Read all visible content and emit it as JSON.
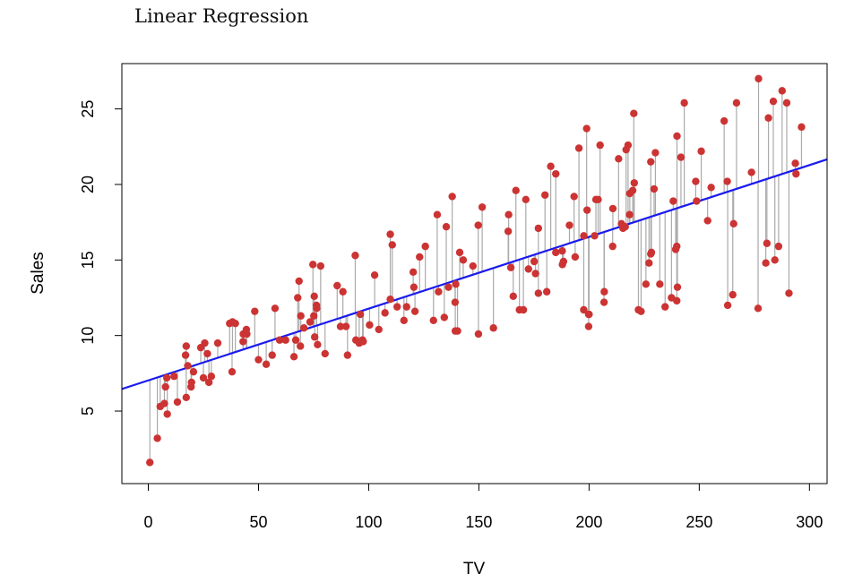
{
  "page": {
    "title": "Linear Regression"
  },
  "chart_data": {
    "type": "scatter",
    "title": "Linear Regression",
    "xlabel": "TV",
    "ylabel": "Sales",
    "xlim": [
      -12,
      308
    ],
    "ylim": [
      0.2,
      28.0
    ],
    "x_ticks": [
      0,
      50,
      100,
      150,
      200,
      250,
      300
    ],
    "y_ticks": [
      5,
      10,
      15,
      20,
      25
    ],
    "grid": false,
    "legend": "none",
    "colors": {
      "points": "#cc3333",
      "fit_line": "#1a1aee",
      "residuals": "#aaaaaa",
      "axes": "#000000"
    },
    "regression_line": {
      "intercept": 7.03,
      "slope": 0.0475
    },
    "points": [
      [
        0.7,
        1.6
      ],
      [
        4.1,
        3.2
      ],
      [
        5.4,
        5.3
      ],
      [
        7.3,
        5.5
      ],
      [
        8.6,
        4.8
      ],
      [
        7.8,
        6.6
      ],
      [
        8.4,
        7.2
      ],
      [
        11.7,
        7.3
      ],
      [
        13.2,
        5.6
      ],
      [
        17.2,
        5.9
      ],
      [
        17.9,
        8.0
      ],
      [
        19.4,
        6.6
      ],
      [
        19.6,
        6.9
      ],
      [
        16.9,
        8.7
      ],
      [
        17.2,
        9.3
      ],
      [
        20.5,
        7.6
      ],
      [
        23.8,
        9.2
      ],
      [
        25.0,
        7.2
      ],
      [
        25.6,
        9.5
      ],
      [
        26.8,
        8.8
      ],
      [
        27.5,
        6.9
      ],
      [
        28.6,
        7.3
      ],
      [
        31.5,
        9.5
      ],
      [
        36.9,
        10.8
      ],
      [
        38.0,
        7.6
      ],
      [
        38.2,
        10.9
      ],
      [
        39.5,
        10.8
      ],
      [
        43.0,
        9.6
      ],
      [
        43.1,
        10.1
      ],
      [
        44.5,
        10.4
      ],
      [
        44.7,
        10.1
      ],
      [
        48.3,
        11.6
      ],
      [
        50.0,
        8.4
      ],
      [
        53.5,
        8.1
      ],
      [
        56.2,
        8.7
      ],
      [
        57.5,
        11.8
      ],
      [
        59.6,
        9.7
      ],
      [
        62.3,
        9.7
      ],
      [
        66.1,
        8.6
      ],
      [
        66.9,
        9.7
      ],
      [
        67.8,
        12.5
      ],
      [
        68.4,
        13.6
      ],
      [
        69.0,
        9.3
      ],
      [
        69.2,
        11.3
      ],
      [
        70.6,
        10.5
      ],
      [
        73.4,
        10.9
      ],
      [
        74.7,
        14.7
      ],
      [
        75.3,
        12.6
      ],
      [
        75.1,
        11.3
      ],
      [
        75.5,
        9.9
      ],
      [
        76.3,
        12.0
      ],
      [
        76.4,
        11.8
      ],
      [
        76.8,
        9.4
      ],
      [
        78.2,
        14.6
      ],
      [
        80.2,
        8.8
      ],
      [
        85.7,
        13.3
      ],
      [
        87.2,
        10.6
      ],
      [
        88.3,
        12.9
      ],
      [
        89.7,
        10.6
      ],
      [
        90.4,
        8.7
      ],
      [
        93.9,
        15.3
      ],
      [
        94.2,
        9.7
      ],
      [
        95.7,
        9.5
      ],
      [
        96.2,
        11.4
      ],
      [
        97.2,
        9.7
      ],
      [
        97.5,
        9.6
      ],
      [
        100.4,
        10.7
      ],
      [
        102.7,
        14.0
      ],
      [
        104.6,
        10.4
      ],
      [
        107.4,
        11.5
      ],
      [
        109.8,
        12.4
      ],
      [
        110.7,
        16.0
      ],
      [
        109.8,
        16.7
      ],
      [
        112.9,
        11.9
      ],
      [
        116.0,
        11.0
      ],
      [
        117.2,
        11.9
      ],
      [
        120.2,
        14.2
      ],
      [
        120.5,
        13.2
      ],
      [
        121.0,
        11.6
      ],
      [
        123.1,
        15.2
      ],
      [
        125.7,
        15.9
      ],
      [
        129.4,
        11.0
      ],
      [
        131.1,
        18.0
      ],
      [
        131.7,
        12.9
      ],
      [
        134.3,
        11.2
      ],
      [
        135.2,
        17.2
      ],
      [
        136.2,
        13.2
      ],
      [
        137.9,
        19.2
      ],
      [
        139.2,
        12.2
      ],
      [
        139.3,
        10.3
      ],
      [
        139.5,
        13.4
      ],
      [
        140.3,
        10.3
      ],
      [
        141.3,
        15.5
      ],
      [
        142.9,
        15.0
      ],
      [
        147.3,
        14.6
      ],
      [
        149.7,
        17.3
      ],
      [
        149.8,
        10.1
      ],
      [
        151.5,
        18.5
      ],
      [
        156.6,
        10.5
      ],
      [
        163.3,
        16.9
      ],
      [
        163.5,
        18.0
      ],
      [
        164.5,
        14.5
      ],
      [
        165.6,
        12.6
      ],
      [
        166.8,
        19.6
      ],
      [
        168.4,
        11.7
      ],
      [
        170.2,
        11.7
      ],
      [
        171.3,
        19.0
      ],
      [
        172.5,
        14.4
      ],
      [
        175.1,
        14.9
      ],
      [
        175.7,
        14.1
      ],
      [
        177.0,
        17.1
      ],
      [
        177.0,
        12.8
      ],
      [
        180.8,
        12.9
      ],
      [
        182.6,
        21.2
      ],
      [
        184.9,
        20.7
      ],
      [
        184.9,
        15.5
      ],
      [
        187.8,
        15.6
      ],
      [
        187.9,
        14.7
      ],
      [
        188.4,
        14.9
      ],
      [
        191.1,
        17.3
      ],
      [
        193.2,
        19.2
      ],
      [
        193.7,
        15.2
      ],
      [
        195.4,
        22.4
      ],
      [
        197.6,
        16.6
      ],
      [
        197.6,
        11.7
      ],
      [
        198.9,
        23.7
      ],
      [
        199.1,
        18.3
      ],
      [
        199.8,
        10.6
      ],
      [
        199.8,
        11.4
      ],
      [
        202.5,
        16.6
      ],
      [
        204.1,
        19.0
      ],
      [
        205.0,
        22.6
      ],
      [
        206.8,
        12.2
      ],
      [
        206.9,
        12.9
      ],
      [
        210.7,
        15.9
      ],
      [
        210.8,
        18.4
      ],
      [
        213.4,
        21.7
      ],
      [
        214.7,
        17.4
      ],
      [
        215.4,
        17.1
      ],
      [
        216.4,
        17.2
      ],
      [
        216.8,
        22.3
      ],
      [
        217.7,
        22.6
      ],
      [
        218.4,
        18.0
      ],
      [
        218.5,
        19.4
      ],
      [
        219.8,
        19.6
      ],
      [
        220.3,
        24.7
      ],
      [
        220.5,
        20.1
      ],
      [
        222.4,
        11.7
      ],
      [
        223.6,
        11.6
      ],
      [
        225.8,
        13.4
      ],
      [
        227.2,
        14.8
      ],
      [
        228.0,
        21.5
      ],
      [
        228.3,
        15.5
      ],
      [
        229.5,
        19.7
      ],
      [
        230.1,
        22.1
      ],
      [
        232.1,
        13.4
      ],
      [
        234.5,
        11.9
      ],
      [
        237.4,
        12.5
      ],
      [
        238.2,
        18.9
      ],
      [
        239.3,
        15.7
      ],
      [
        239.8,
        12.3
      ],
      [
        239.9,
        23.2
      ],
      [
        240.1,
        13.2
      ],
      [
        241.7,
        21.8
      ],
      [
        243.2,
        25.4
      ],
      [
        248.4,
        20.2
      ],
      [
        248.8,
        18.9
      ],
      [
        250.9,
        22.2
      ],
      [
        253.8,
        17.6
      ],
      [
        255.4,
        19.8
      ],
      [
        261.3,
        24.2
      ],
      [
        262.7,
        20.2
      ],
      [
        262.9,
        12.0
      ],
      [
        265.2,
        12.7
      ],
      [
        265.6,
        17.4
      ],
      [
        266.9,
        25.4
      ],
      [
        273.7,
        20.8
      ],
      [
        276.9,
        27.0
      ],
      [
        276.7,
        11.8
      ],
      [
        280.2,
        14.8
      ],
      [
        280.7,
        16.1
      ],
      [
        281.4,
        24.4
      ],
      [
        283.6,
        25.5
      ],
      [
        284.3,
        15.0
      ],
      [
        286.0,
        15.9
      ],
      [
        287.6,
        26.2
      ],
      [
        289.7,
        25.4
      ],
      [
        290.7,
        12.8
      ],
      [
        293.6,
        21.4
      ],
      [
        293.9,
        20.7
      ],
      [
        296.4,
        23.8
      ],
      [
        239.8,
        15.9
      ],
      [
        228.0,
        15.4
      ],
      [
        203.1,
        19.0
      ],
      [
        200.0,
        11.4
      ],
      [
        180.0,
        19.3
      ]
    ]
  }
}
